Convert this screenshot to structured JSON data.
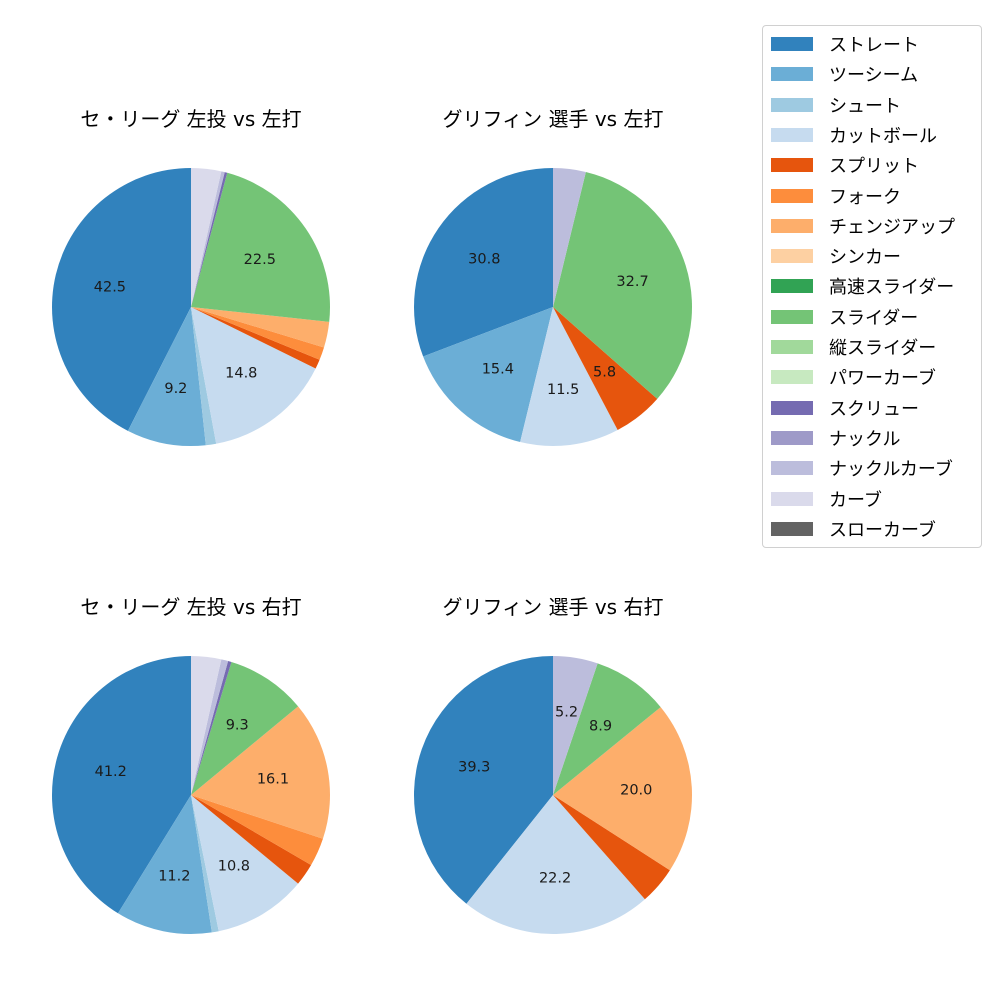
{
  "legend": {
    "items": [
      {
        "label": "ストレート",
        "color": "#3182bd"
      },
      {
        "label": "ツーシーム",
        "color": "#6baed6"
      },
      {
        "label": "シュート",
        "color": "#9ecae1"
      },
      {
        "label": "カットボール",
        "color": "#c6dbef"
      },
      {
        "label": "スプリット",
        "color": "#e6550d"
      },
      {
        "label": "フォーク",
        "color": "#fd8d3c"
      },
      {
        "label": "チェンジアップ",
        "color": "#fdae6b"
      },
      {
        "label": "シンカー",
        "color": "#fdd0a2"
      },
      {
        "label": "高速スライダー",
        "color": "#31a354"
      },
      {
        "label": "スライダー",
        "color": "#74c476"
      },
      {
        "label": "縦スライダー",
        "color": "#a1d99b"
      },
      {
        "label": "パワーカーブ",
        "color": "#c7e9c0"
      },
      {
        "label": "スクリュー",
        "color": "#756bb1"
      },
      {
        "label": "ナックル",
        "color": "#9e9ac8"
      },
      {
        "label": "ナックルカーブ",
        "color": "#bcbddc"
      },
      {
        "label": "カーブ",
        "color": "#dadaeb"
      },
      {
        "label": "スローカーブ",
        "color": "#636363"
      }
    ]
  },
  "chart_data": [
    {
      "type": "pie",
      "title": "セ・リーグ 左投 vs 左打",
      "start_angle": 90,
      "direction": "counterclockwise",
      "slices": [
        {
          "name": "ストレート",
          "value": 42.5,
          "label": "42.5"
        },
        {
          "name": "ツーシーム",
          "value": 9.2,
          "label": "9.2"
        },
        {
          "name": "シュート",
          "value": 1.2,
          "label": ""
        },
        {
          "name": "カットボール",
          "value": 14.8,
          "label": "14.8"
        },
        {
          "name": "スプリット",
          "value": 1.1,
          "label": ""
        },
        {
          "name": "フォーク",
          "value": 1.5,
          "label": ""
        },
        {
          "name": "チェンジアップ",
          "value": 3.0,
          "label": ""
        },
        {
          "name": "スライダー",
          "value": 22.5,
          "label": "22.5"
        },
        {
          "name": "スクリュー",
          "value": 0.3,
          "label": ""
        },
        {
          "name": "ナックルカーブ",
          "value": 0.4,
          "label": ""
        },
        {
          "name": "カーブ",
          "value": 3.5,
          "label": ""
        }
      ]
    },
    {
      "type": "pie",
      "title": "グリフィン 選手 vs 左打",
      "start_angle": 90,
      "direction": "counterclockwise",
      "slices": [
        {
          "name": "ストレート",
          "value": 30.8,
          "label": "30.8"
        },
        {
          "name": "ツーシーム",
          "value": 15.4,
          "label": "15.4"
        },
        {
          "name": "カットボール",
          "value": 11.5,
          "label": "11.5"
        },
        {
          "name": "スプリット",
          "value": 5.8,
          "label": "5.8"
        },
        {
          "name": "スライダー",
          "value": 32.7,
          "label": "32.7"
        },
        {
          "name": "ナックルカーブ",
          "value": 3.8,
          "label": ""
        }
      ]
    },
    {
      "type": "pie",
      "title": "セ・リーグ 左投 vs 右打",
      "start_angle": 90,
      "direction": "counterclockwise",
      "slices": [
        {
          "name": "ストレート",
          "value": 41.2,
          "label": "41.2"
        },
        {
          "name": "ツーシーム",
          "value": 11.2,
          "label": "11.2"
        },
        {
          "name": "シュート",
          "value": 0.8,
          "label": ""
        },
        {
          "name": "カットボール",
          "value": 10.8,
          "label": "10.8"
        },
        {
          "name": "スプリット",
          "value": 2.6,
          "label": ""
        },
        {
          "name": "フォーク",
          "value": 3.3,
          "label": ""
        },
        {
          "name": "チェンジアップ",
          "value": 16.1,
          "label": "16.1"
        },
        {
          "name": "スライダー",
          "value": 9.3,
          "label": "9.3"
        },
        {
          "name": "スクリュー",
          "value": 0.4,
          "label": ""
        },
        {
          "name": "ナックルカーブ",
          "value": 0.8,
          "label": ""
        },
        {
          "name": "カーブ",
          "value": 3.5,
          "label": ""
        }
      ]
    },
    {
      "type": "pie",
      "title": "グリフィン 選手 vs 右打",
      "start_angle": 90,
      "direction": "counterclockwise",
      "slices": [
        {
          "name": "ストレート",
          "value": 39.3,
          "label": "39.3"
        },
        {
          "name": "カットボール",
          "value": 22.2,
          "label": "22.2"
        },
        {
          "name": "スプリット",
          "value": 4.4,
          "label": ""
        },
        {
          "name": "チェンジアップ",
          "value": 20.0,
          "label": "20.0"
        },
        {
          "name": "スライダー",
          "value": 8.9,
          "label": "8.9"
        },
        {
          "name": "ナックルカーブ",
          "value": 5.2,
          "label": "5.2"
        }
      ]
    }
  ]
}
